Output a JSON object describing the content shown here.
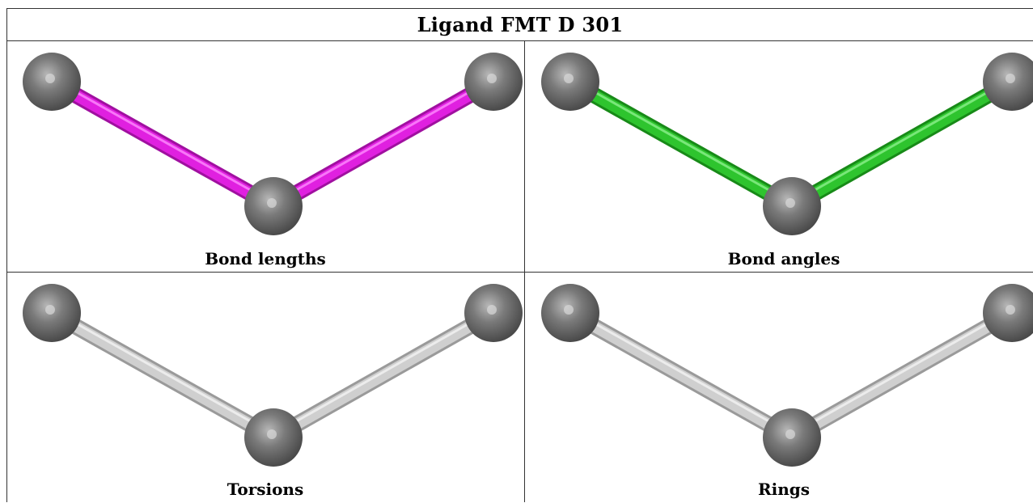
{
  "title": "Ligand FMT D 301",
  "panels": [
    {
      "label": "Bond lengths",
      "bond_color": "#e020e0",
      "bond_highlight": "#ff8cff",
      "bond_shadow": "#a010a0"
    },
    {
      "label": "Bond angles",
      "bond_color": "#2ec42e",
      "bond_highlight": "#8cf08c",
      "bond_shadow": "#188a18"
    },
    {
      "label": "Torsions",
      "bond_color": "#cfcfcf",
      "bond_highlight": "#f4f4f4",
      "bond_shadow": "#9a9a9a"
    },
    {
      "label": "Rings",
      "bond_color": "#cfcfcf",
      "bond_highlight": "#f4f4f4",
      "bond_shadow": "#9a9a9a"
    }
  ],
  "atom_color": "#7a7a7a"
}
